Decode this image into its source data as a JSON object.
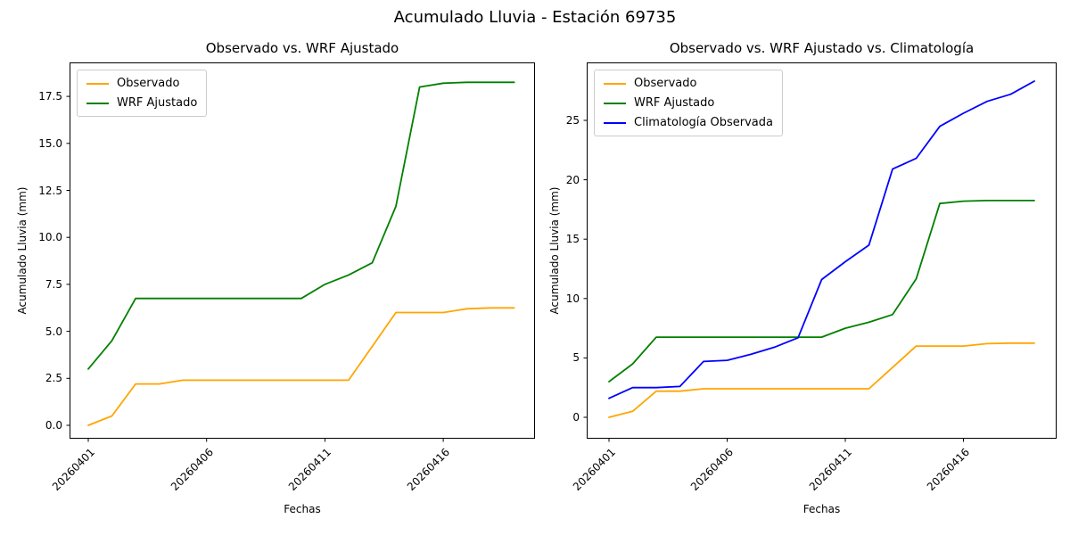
{
  "figure": {
    "suptitle": "Acumulado Lluvia - Estación 69735"
  },
  "chart_data": [
    {
      "type": "line",
      "title": "Observado vs. WRF Ajustado",
      "xlabel": "Fechas",
      "ylabel": "Acumulado Lluvia (mm)",
      "x": [
        "20260401",
        "20260402",
        "20260403",
        "20260404",
        "20260405",
        "20260406",
        "20260407",
        "20260408",
        "20260409",
        "20260410",
        "20260411",
        "20260412",
        "20260413",
        "20260414",
        "20260415",
        "20260416",
        "20260417",
        "20260418",
        "20260419"
      ],
      "series": [
        {
          "name": "Observado",
          "color": "#FFA500",
          "values": [
            0.0,
            0.5,
            2.2,
            2.2,
            2.4,
            2.4,
            2.4,
            2.4,
            2.4,
            2.4,
            2.4,
            2.4,
            4.2,
            6.0,
            6.0,
            6.0,
            6.2,
            6.25,
            6.25
          ]
        },
        {
          "name": "WRF Ajustado",
          "color": "#008000",
          "values": [
            3.0,
            4.5,
            6.75,
            6.75,
            6.75,
            6.75,
            6.75,
            6.75,
            6.75,
            6.75,
            7.5,
            8.0,
            8.65,
            11.65,
            18.0,
            18.2,
            18.25,
            18.25,
            18.25
          ]
        }
      ],
      "yticks": [
        0.0,
        2.5,
        5.0,
        7.5,
        10.0,
        12.5,
        15.0,
        17.5
      ],
      "ytick_labels": [
        "0.0",
        "2.5",
        "5.0",
        "7.5",
        "10.0",
        "12.5",
        "15.0",
        "17.5"
      ],
      "xtick_days": [
        0,
        5,
        10,
        15
      ],
      "xtick_labels": [
        "20260401",
        "20260406",
        "20260411",
        "20260416"
      ],
      "ylim": [
        -0.7,
        19.3
      ],
      "grid": false,
      "legend_position": "upper left"
    },
    {
      "type": "line",
      "title": "Observado vs. WRF Ajustado vs. Climatología",
      "xlabel": "Fechas",
      "ylabel": "Acumulado Lluvia (mm)",
      "x": [
        "20260401",
        "20260402",
        "20260403",
        "20260404",
        "20260405",
        "20260406",
        "20260407",
        "20260408",
        "20260409",
        "20260410",
        "20260411",
        "20260412",
        "20260413",
        "20260414",
        "20260415",
        "20260416",
        "20260417",
        "20260418",
        "20260419"
      ],
      "series": [
        {
          "name": "Observado",
          "color": "#FFA500",
          "values": [
            0.0,
            0.5,
            2.2,
            2.2,
            2.4,
            2.4,
            2.4,
            2.4,
            2.4,
            2.4,
            2.4,
            2.4,
            4.2,
            6.0,
            6.0,
            6.0,
            6.2,
            6.25,
            6.25
          ]
        },
        {
          "name": "WRF Ajustado",
          "color": "#008000",
          "values": [
            3.0,
            4.5,
            6.75,
            6.75,
            6.75,
            6.75,
            6.75,
            6.75,
            6.75,
            6.75,
            7.5,
            8.0,
            8.65,
            11.65,
            18.0,
            18.2,
            18.25,
            18.25,
            18.25
          ]
        },
        {
          "name": "Climatología Observada",
          "color": "#0000FF",
          "values": [
            1.6,
            2.5,
            2.5,
            2.6,
            4.7,
            4.8,
            5.3,
            5.9,
            6.7,
            11.6,
            13.1,
            14.5,
            20.9,
            21.8,
            24.5,
            25.6,
            26.6,
            27.2,
            28.3
          ]
        }
      ],
      "yticks": [
        0,
        5,
        10,
        15,
        20,
        25
      ],
      "ytick_labels": [
        "0",
        "5",
        "10",
        "15",
        "20",
        "25"
      ],
      "xtick_days": [
        0,
        5,
        10,
        15
      ],
      "xtick_labels": [
        "20260401",
        "20260406",
        "20260411",
        "20260416"
      ],
      "ylim": [
        -1.8,
        29.9
      ],
      "grid": false,
      "legend_position": "upper left"
    }
  ]
}
